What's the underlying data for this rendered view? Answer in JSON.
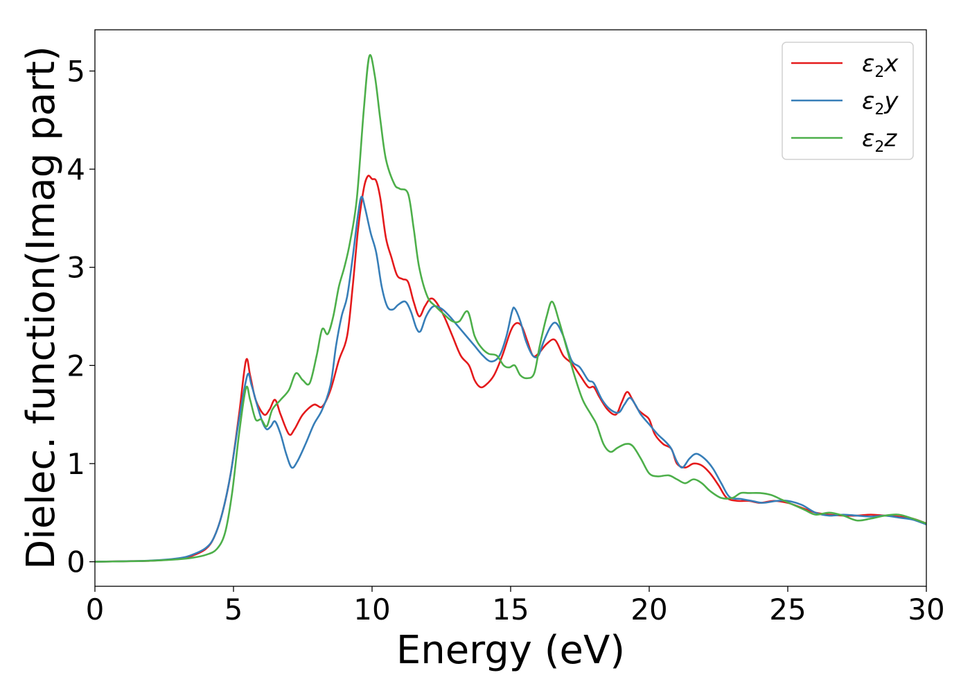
{
  "chart_data": {
    "type": "line",
    "title": "",
    "xlabel": "Energy (eV)",
    "ylabel": "Dielec. function(Imag part)",
    "xlim": [
      0,
      30
    ],
    "ylim": [
      -0.25,
      5.42
    ],
    "xticks": [
      0,
      5,
      10,
      15,
      20,
      25,
      30
    ],
    "yticks": [
      0,
      1,
      2,
      3,
      4,
      5
    ],
    "grid": false,
    "legend_position": "top-right",
    "series": [
      {
        "name": "ε2x",
        "legend_symbol": "ε",
        "legend_subscript": "2",
        "legend_suffix": "x",
        "color": "#e41a1c",
        "points": [
          [
            0,
            0
          ],
          [
            1,
            0.005
          ],
          [
            2,
            0.01
          ],
          [
            3,
            0.03
          ],
          [
            3.5,
            0.06
          ],
          [
            4,
            0.13
          ],
          [
            4.3,
            0.25
          ],
          [
            4.6,
            0.5
          ],
          [
            4.9,
            0.9
          ],
          [
            5.2,
            1.5
          ],
          [
            5.45,
            2.05
          ],
          [
            5.6,
            1.9
          ],
          [
            5.8,
            1.65
          ],
          [
            6.1,
            1.5
          ],
          [
            6.3,
            1.55
          ],
          [
            6.5,
            1.65
          ],
          [
            6.7,
            1.5
          ],
          [
            7,
            1.3
          ],
          [
            7.2,
            1.35
          ],
          [
            7.5,
            1.5
          ],
          [
            7.9,
            1.6
          ],
          [
            8.2,
            1.58
          ],
          [
            8.5,
            1.75
          ],
          [
            8.8,
            2.05
          ],
          [
            9.1,
            2.3
          ],
          [
            9.3,
            2.8
          ],
          [
            9.5,
            3.4
          ],
          [
            9.7,
            3.8
          ],
          [
            9.85,
            3.93
          ],
          [
            10,
            3.9
          ],
          [
            10.15,
            3.88
          ],
          [
            10.3,
            3.7
          ],
          [
            10.5,
            3.3
          ],
          [
            10.7,
            3.1
          ],
          [
            10.9,
            2.92
          ],
          [
            11.1,
            2.88
          ],
          [
            11.3,
            2.85
          ],
          [
            11.5,
            2.65
          ],
          [
            11.7,
            2.5
          ],
          [
            11.9,
            2.6
          ],
          [
            12.1,
            2.68
          ],
          [
            12.3,
            2.65
          ],
          [
            12.6,
            2.5
          ],
          [
            12.9,
            2.3
          ],
          [
            13.2,
            2.1
          ],
          [
            13.5,
            2.0
          ],
          [
            13.7,
            1.85
          ],
          [
            13.9,
            1.78
          ],
          [
            14.1,
            1.8
          ],
          [
            14.4,
            1.9
          ],
          [
            14.7,
            2.1
          ],
          [
            15.0,
            2.35
          ],
          [
            15.2,
            2.43
          ],
          [
            15.4,
            2.4
          ],
          [
            15.6,
            2.25
          ],
          [
            15.8,
            2.1
          ],
          [
            16.0,
            2.12
          ],
          [
            16.3,
            2.22
          ],
          [
            16.6,
            2.26
          ],
          [
            16.9,
            2.1
          ],
          [
            17.2,
            2.02
          ],
          [
            17.5,
            1.9
          ],
          [
            17.8,
            1.78
          ],
          [
            18.0,
            1.78
          ],
          [
            18.2,
            1.68
          ],
          [
            18.5,
            1.55
          ],
          [
            18.8,
            1.5
          ],
          [
            19.0,
            1.62
          ],
          [
            19.2,
            1.73
          ],
          [
            19.4,
            1.65
          ],
          [
            19.6,
            1.55
          ],
          [
            19.8,
            1.5
          ],
          [
            20.0,
            1.45
          ],
          [
            20.2,
            1.3
          ],
          [
            20.5,
            1.2
          ],
          [
            20.8,
            1.15
          ],
          [
            21.0,
            1.0
          ],
          [
            21.3,
            0.96
          ],
          [
            21.6,
            1.0
          ],
          [
            21.9,
            0.98
          ],
          [
            22.2,
            0.9
          ],
          [
            22.5,
            0.78
          ],
          [
            22.8,
            0.65
          ],
          [
            23.2,
            0.62
          ],
          [
            23.6,
            0.62
          ],
          [
            24.0,
            0.6
          ],
          [
            24.5,
            0.62
          ],
          [
            25.0,
            0.6
          ],
          [
            25.5,
            0.55
          ],
          [
            26.0,
            0.5
          ],
          [
            26.5,
            0.48
          ],
          [
            27.0,
            0.47
          ],
          [
            27.5,
            0.47
          ],
          [
            28.0,
            0.48
          ],
          [
            28.5,
            0.47
          ],
          [
            29.0,
            0.46
          ],
          [
            29.5,
            0.44
          ],
          [
            30,
            0.39
          ]
        ]
      },
      {
        "name": "ε2y",
        "legend_symbol": "ε",
        "legend_subscript": "2",
        "legend_suffix": "y",
        "color": "#377eb8",
        "points": [
          [
            0,
            0
          ],
          [
            1,
            0.005
          ],
          [
            2,
            0.012
          ],
          [
            3,
            0.035
          ],
          [
            3.5,
            0.07
          ],
          [
            4,
            0.14
          ],
          [
            4.3,
            0.25
          ],
          [
            4.6,
            0.5
          ],
          [
            4.9,
            0.9
          ],
          [
            5.2,
            1.45
          ],
          [
            5.5,
            1.9
          ],
          [
            5.65,
            1.8
          ],
          [
            5.85,
            1.6
          ],
          [
            6.05,
            1.42
          ],
          [
            6.2,
            1.35
          ],
          [
            6.35,
            1.38
          ],
          [
            6.5,
            1.43
          ],
          [
            6.7,
            1.3
          ],
          [
            6.9,
            1.1
          ],
          [
            7.1,
            0.96
          ],
          [
            7.3,
            1.02
          ],
          [
            7.6,
            1.2
          ],
          [
            7.9,
            1.4
          ],
          [
            8.2,
            1.55
          ],
          [
            8.5,
            1.8
          ],
          [
            8.7,
            2.2
          ],
          [
            8.9,
            2.5
          ],
          [
            9.1,
            2.7
          ],
          [
            9.3,
            3.1
          ],
          [
            9.5,
            3.55
          ],
          [
            9.62,
            3.72
          ],
          [
            9.75,
            3.6
          ],
          [
            9.95,
            3.35
          ],
          [
            10.15,
            3.15
          ],
          [
            10.35,
            2.8
          ],
          [
            10.55,
            2.6
          ],
          [
            10.75,
            2.57
          ],
          [
            10.95,
            2.62
          ],
          [
            11.2,
            2.65
          ],
          [
            11.4,
            2.55
          ],
          [
            11.6,
            2.38
          ],
          [
            11.75,
            2.35
          ],
          [
            11.95,
            2.5
          ],
          [
            12.2,
            2.6
          ],
          [
            12.5,
            2.58
          ],
          [
            12.8,
            2.5
          ],
          [
            13.1,
            2.4
          ],
          [
            13.4,
            2.3
          ],
          [
            13.7,
            2.2
          ],
          [
            14.0,
            2.1
          ],
          [
            14.3,
            2.04
          ],
          [
            14.6,
            2.1
          ],
          [
            14.85,
            2.3
          ],
          [
            15.05,
            2.55
          ],
          [
            15.15,
            2.58
          ],
          [
            15.35,
            2.45
          ],
          [
            15.55,
            2.25
          ],
          [
            15.8,
            2.1
          ],
          [
            16.0,
            2.1
          ],
          [
            16.2,
            2.25
          ],
          [
            16.45,
            2.4
          ],
          [
            16.65,
            2.43
          ],
          [
            16.9,
            2.3
          ],
          [
            17.2,
            2.05
          ],
          [
            17.5,
            1.98
          ],
          [
            17.8,
            1.85
          ],
          [
            18.0,
            1.82
          ],
          [
            18.3,
            1.65
          ],
          [
            18.6,
            1.55
          ],
          [
            18.9,
            1.52
          ],
          [
            19.1,
            1.6
          ],
          [
            19.3,
            1.67
          ],
          [
            19.5,
            1.6
          ],
          [
            19.7,
            1.5
          ],
          [
            20.0,
            1.4
          ],
          [
            20.3,
            1.3
          ],
          [
            20.6,
            1.22
          ],
          [
            20.8,
            1.15
          ],
          [
            21.0,
            1.02
          ],
          [
            21.2,
            0.96
          ],
          [
            21.45,
            1.05
          ],
          [
            21.7,
            1.1
          ],
          [
            22.0,
            1.05
          ],
          [
            22.3,
            0.95
          ],
          [
            22.6,
            0.8
          ],
          [
            22.9,
            0.66
          ],
          [
            23.3,
            0.64
          ],
          [
            23.7,
            0.62
          ],
          [
            24.1,
            0.6
          ],
          [
            24.6,
            0.62
          ],
          [
            25.0,
            0.62
          ],
          [
            25.5,
            0.58
          ],
          [
            26.0,
            0.5
          ],
          [
            26.5,
            0.47
          ],
          [
            27.0,
            0.48
          ],
          [
            27.5,
            0.47
          ],
          [
            28.0,
            0.46
          ],
          [
            28.5,
            0.47
          ],
          [
            29.0,
            0.45
          ],
          [
            29.5,
            0.43
          ],
          [
            30,
            0.38
          ]
        ]
      },
      {
        "name": "ε2z",
        "legend_symbol": "ε",
        "legend_subscript": "2",
        "legend_suffix": "z",
        "color": "#4daf4a",
        "points": [
          [
            0,
            0
          ],
          [
            1,
            0.004
          ],
          [
            2,
            0.01
          ],
          [
            3,
            0.025
          ],
          [
            3.5,
            0.04
          ],
          [
            4,
            0.07
          ],
          [
            4.4,
            0.13
          ],
          [
            4.7,
            0.3
          ],
          [
            4.95,
            0.7
          ],
          [
            5.2,
            1.3
          ],
          [
            5.45,
            1.77
          ],
          [
            5.6,
            1.65
          ],
          [
            5.8,
            1.45
          ],
          [
            6.0,
            1.45
          ],
          [
            6.2,
            1.38
          ],
          [
            6.4,
            1.55
          ],
          [
            6.7,
            1.65
          ],
          [
            7.0,
            1.75
          ],
          [
            7.25,
            1.92
          ],
          [
            7.5,
            1.85
          ],
          [
            7.75,
            1.82
          ],
          [
            8.0,
            2.1
          ],
          [
            8.2,
            2.37
          ],
          [
            8.4,
            2.32
          ],
          [
            8.6,
            2.5
          ],
          [
            8.8,
            2.8
          ],
          [
            9.0,
            3.0
          ],
          [
            9.2,
            3.25
          ],
          [
            9.45,
            3.7
          ],
          [
            9.7,
            4.6
          ],
          [
            9.9,
            5.15
          ],
          [
            10.1,
            4.95
          ],
          [
            10.3,
            4.5
          ],
          [
            10.5,
            4.1
          ],
          [
            10.8,
            3.85
          ],
          [
            11.0,
            3.8
          ],
          [
            11.3,
            3.75
          ],
          [
            11.5,
            3.4
          ],
          [
            11.7,
            3.0
          ],
          [
            12.0,
            2.7
          ],
          [
            12.3,
            2.6
          ],
          [
            12.6,
            2.52
          ],
          [
            12.9,
            2.45
          ],
          [
            13.15,
            2.45
          ],
          [
            13.45,
            2.55
          ],
          [
            13.7,
            2.3
          ],
          [
            13.95,
            2.18
          ],
          [
            14.2,
            2.12
          ],
          [
            14.5,
            2.1
          ],
          [
            14.75,
            2.0
          ],
          [
            14.95,
            1.98
          ],
          [
            15.15,
            2.0
          ],
          [
            15.35,
            1.9
          ],
          [
            15.6,
            1.87
          ],
          [
            15.85,
            1.92
          ],
          [
            16.05,
            2.2
          ],
          [
            16.3,
            2.5
          ],
          [
            16.5,
            2.65
          ],
          [
            16.75,
            2.45
          ],
          [
            17.0,
            2.2
          ],
          [
            17.3,
            1.9
          ],
          [
            17.6,
            1.65
          ],
          [
            17.9,
            1.5
          ],
          [
            18.1,
            1.4
          ],
          [
            18.35,
            1.2
          ],
          [
            18.6,
            1.12
          ],
          [
            18.85,
            1.16
          ],
          [
            19.15,
            1.2
          ],
          [
            19.4,
            1.18
          ],
          [
            19.7,
            1.05
          ],
          [
            20.0,
            0.9
          ],
          [
            20.3,
            0.87
          ],
          [
            20.7,
            0.88
          ],
          [
            21.0,
            0.84
          ],
          [
            21.3,
            0.8
          ],
          [
            21.6,
            0.84
          ],
          [
            21.9,
            0.8
          ],
          [
            22.2,
            0.72
          ],
          [
            22.6,
            0.65
          ],
          [
            23.0,
            0.65
          ],
          [
            23.3,
            0.7
          ],
          [
            23.6,
            0.7
          ],
          [
            24.0,
            0.7
          ],
          [
            24.4,
            0.68
          ],
          [
            24.8,
            0.63
          ],
          [
            25.2,
            0.58
          ],
          [
            25.6,
            0.53
          ],
          [
            26.0,
            0.48
          ],
          [
            26.5,
            0.5
          ],
          [
            27.0,
            0.47
          ],
          [
            27.5,
            0.42
          ],
          [
            28.0,
            0.44
          ],
          [
            28.5,
            0.47
          ],
          [
            29.0,
            0.48
          ],
          [
            29.5,
            0.44
          ],
          [
            30,
            0.39
          ]
        ]
      }
    ]
  }
}
